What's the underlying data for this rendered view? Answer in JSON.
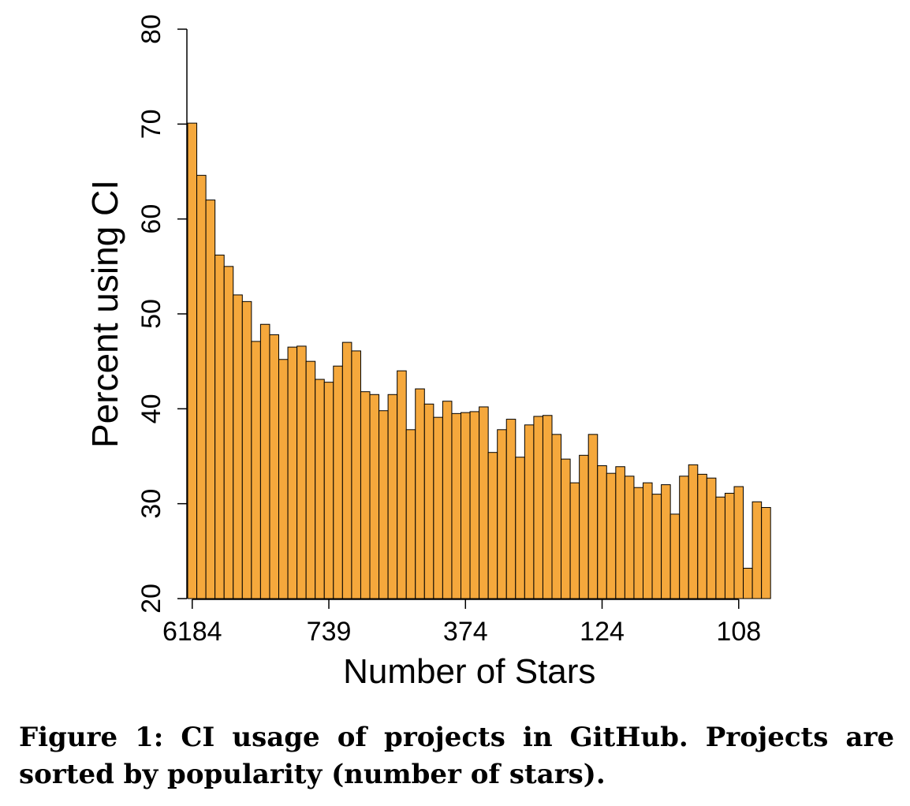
{
  "caption": "Figure 1: CI usage of projects in GitHub. Projects are sorted by popularity (number of stars).",
  "chart_data": {
    "type": "bar",
    "xlabel": "Number of Stars",
    "ylabel": "Percent using CI",
    "ylim": [
      20,
      80
    ],
    "yticks": [
      20,
      30,
      40,
      50,
      60,
      70,
      80
    ],
    "xtick_labels": [
      {
        "index": 1,
        "label": "6184"
      },
      {
        "index": 16,
        "label": "739"
      },
      {
        "index": 31,
        "label": "374"
      },
      {
        "index": 46,
        "label": "124"
      },
      {
        "index": 61,
        "label": "108"
      }
    ],
    "bar_color": "#F5A83C",
    "values": [
      70.1,
      64.6,
      62.0,
      56.2,
      55.0,
      52.0,
      51.3,
      47.1,
      48.9,
      47.8,
      45.2,
      46.5,
      46.6,
      45.0,
      43.1,
      42.8,
      44.5,
      47.0,
      46.1,
      41.8,
      41.5,
      39.8,
      41.5,
      44.0,
      37.8,
      42.1,
      40.5,
      39.1,
      40.8,
      39.5,
      39.6,
      39.7,
      40.2,
      35.4,
      37.8,
      38.9,
      34.9,
      38.3,
      39.2,
      39.3,
      37.3,
      34.7,
      32.2,
      35.1,
      37.3,
      34.0,
      33.2,
      33.9,
      32.9,
      31.7,
      32.2,
      31.0,
      32.0,
      28.9,
      32.9,
      34.1,
      33.1,
      32.7,
      30.7,
      31.1,
      31.8,
      23.2,
      30.2,
      29.6
    ]
  }
}
